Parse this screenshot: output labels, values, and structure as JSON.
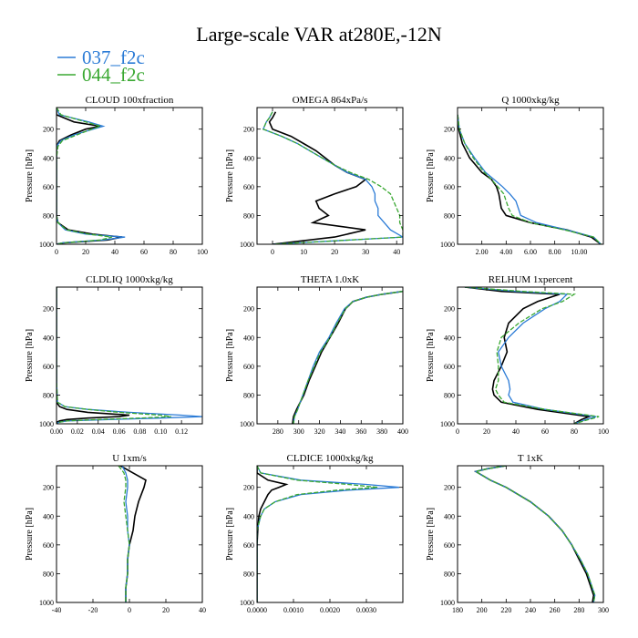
{
  "figure_title": "Large-scale VAR at280E,-12N",
  "legend": [
    {
      "label": "037_f2c",
      "color": "#2b7bd6"
    },
    {
      "label": "044_f2c",
      "color": "#3aa832"
    }
  ],
  "colors": {
    "obs": "#000000",
    "s1": "#2b7bd6",
    "s2": "#3aa832"
  },
  "chart_data": [
    {
      "type": "line",
      "title": "CLOUD 100xfraction",
      "ylabel": "Pressure [hPa]",
      "xlim": [
        0,
        100
      ],
      "ylim": [
        1000,
        50
      ],
      "grid": false,
      "xticks": [
        "0",
        "20",
        "40",
        "60",
        "80",
        "100"
      ],
      "xtick_values": [
        0,
        20,
        40,
        60,
        80,
        100
      ],
      "yticks": [
        "200",
        "400",
        "600",
        "800",
        "1000"
      ],
      "ytick_values": [
        200,
        400,
        600,
        800,
        1000
      ],
      "y": [
        50,
        100,
        150,
        180,
        200,
        240,
        280,
        320,
        400,
        500,
        600,
        700,
        800,
        850,
        900,
        930,
        950,
        970,
        990,
        1000
      ],
      "series": [
        {
          "values": [
            0,
            0,
            12,
            30,
            20,
            10,
            2,
            0,
            0,
            0,
            0,
            0,
            0,
            1,
            8,
            25,
            45,
            35,
            5,
            0
          ],
          "style": "obs"
        },
        {
          "values": [
            0,
            2,
            22,
            32,
            25,
            12,
            3,
            0,
            0,
            0,
            0,
            0,
            0,
            1,
            6,
            20,
            47,
            32,
            4,
            0
          ],
          "style": "s1"
        },
        {
          "values": [
            0,
            3,
            20,
            30,
            24,
            14,
            4,
            1,
            0,
            0,
            0,
            0,
            0,
            1,
            7,
            22,
            38,
            30,
            5,
            0
          ],
          "style": "s2"
        }
      ]
    },
    {
      "type": "line",
      "title": "OMEGA 864xPa/s",
      "ylabel": "Pressure [hPa]",
      "xlim": [
        -5,
        42
      ],
      "ylim": [
        1000,
        50
      ],
      "grid": false,
      "xticks": [
        "0",
        "10",
        "20",
        "30",
        "40"
      ],
      "xtick_values": [
        0,
        10,
        20,
        30,
        40
      ],
      "yticks": [
        "200",
        "400",
        "600",
        "800",
        "1000"
      ],
      "ytick_values": [
        200,
        400,
        600,
        800,
        1000
      ],
      "y": [
        80,
        120,
        150,
        200,
        250,
        300,
        350,
        400,
        450,
        500,
        550,
        600,
        650,
        700,
        750,
        800,
        850,
        900,
        950,
        1000
      ],
      "series": [
        {
          "values": [
            1,
            0,
            -1,
            0,
            6,
            10,
            14,
            17,
            20,
            24,
            30,
            27,
            20,
            14,
            15,
            18,
            13,
            30,
            20,
            0
          ],
          "style": "obs"
        },
        {
          "values": [
            0,
            -1,
            -2,
            -3,
            3,
            8,
            12,
            16,
            20,
            24,
            30,
            32,
            33,
            33,
            34,
            34,
            36,
            38,
            42,
            0
          ],
          "style": "s1"
        },
        {
          "values": [
            0,
            -1,
            -2,
            -3,
            3,
            8,
            12,
            16,
            20,
            25,
            31,
            35,
            38,
            39,
            40,
            41,
            41,
            42,
            42,
            0
          ],
          "style": "s2"
        }
      ]
    },
    {
      "type": "line",
      "title": "Q 1000xkg/kg",
      "ylabel": "Pressure [hPa]",
      "xlim": [
        0,
        12
      ],
      "ylim": [
        1000,
        50
      ],
      "grid": false,
      "xticks": [
        "2.00",
        "4.00",
        "6.00",
        "8.00",
        "10.00"
      ],
      "xtick_values": [
        2,
        4,
        6,
        8,
        10
      ],
      "yticks": [
        "200",
        "400",
        "600",
        "800",
        "1000"
      ],
      "ytick_values": [
        200,
        400,
        600,
        800,
        1000
      ],
      "y": [
        100,
        200,
        300,
        400,
        500,
        550,
        600,
        650,
        700,
        750,
        800,
        850,
        900,
        950,
        1000
      ],
      "series": [
        {
          "values": [
            0.01,
            0.1,
            0.4,
            1.0,
            2.0,
            2.8,
            3.2,
            3.4,
            3.5,
            3.6,
            4.0,
            6.0,
            9.0,
            11.0,
            11.8
          ],
          "style": "obs"
        },
        {
          "values": [
            0.01,
            0.15,
            0.6,
            1.4,
            2.3,
            3.0,
            3.7,
            4.3,
            4.8,
            5.0,
            5.2,
            6.5,
            9.0,
            11.2,
            11.8
          ],
          "style": "s1"
        },
        {
          "values": [
            0.01,
            0.15,
            0.6,
            1.3,
            2.2,
            2.8,
            3.3,
            3.8,
            4.0,
            4.2,
            4.5,
            6.0,
            8.8,
            11.2,
            11.8
          ],
          "style": "s2"
        }
      ]
    },
    {
      "type": "line",
      "title": "CLDLIQ 1000xkg/kg",
      "ylabel": "Pressure [hPa]",
      "xlim": [
        0,
        0.14
      ],
      "ylim": [
        1000,
        50
      ],
      "grid": false,
      "xticks": [
        "0.00",
        "0.02",
        "0.04",
        "0.06",
        "0.08",
        "0.10",
        "0.12"
      ],
      "xtick_values": [
        0,
        0.02,
        0.04,
        0.06,
        0.08,
        0.1,
        0.12
      ],
      "yticks": [
        "200",
        "400",
        "600",
        "800",
        "1000"
      ],
      "ytick_values": [
        200,
        400,
        600,
        800,
        1000
      ],
      "y": [
        50,
        700,
        850,
        880,
        900,
        920,
        940,
        950,
        960,
        970,
        980,
        990,
        1000
      ],
      "series": [
        {
          "values": [
            0,
            0,
            0,
            0.003,
            0.01,
            0.03,
            0.07,
            0.06,
            0.03,
            0.01,
            0.003,
            0,
            0
          ],
          "style": "obs"
        },
        {
          "values": [
            0,
            0,
            0.001,
            0.008,
            0.03,
            0.07,
            0.12,
            0.14,
            0.1,
            0.05,
            0.01,
            0.002,
            0
          ],
          "style": "s1"
        },
        {
          "values": [
            0,
            0,
            0.001,
            0.008,
            0.03,
            0.06,
            0.1,
            0.11,
            0.08,
            0.04,
            0.01,
            0.002,
            0
          ],
          "style": "s2"
        }
      ]
    },
    {
      "type": "line",
      "title": "THETA 1.0xK",
      "ylabel": "Pressure [hPa]",
      "xlim": [
        260,
        400
      ],
      "ylim": [
        1000,
        50
      ],
      "grid": false,
      "xticks": [
        "280",
        "300",
        "320",
        "340",
        "360",
        "380",
        "400"
      ],
      "xtick_values": [
        280,
        300,
        320,
        340,
        360,
        380,
        400
      ],
      "yticks": [
        "200",
        "400",
        "600",
        "800",
        "1000"
      ],
      "ytick_values": [
        200,
        400,
        600,
        800,
        1000
      ],
      "y": [
        80,
        100,
        120,
        150,
        200,
        300,
        400,
        500,
        600,
        700,
        800,
        900,
        950,
        1000
      ],
      "series": [
        {
          "values": [
            400,
            380,
            365,
            352,
            345,
            338,
            330,
            322,
            316,
            310,
            305,
            298,
            295,
            294
          ],
          "style": "obs"
        },
        {
          "values": [
            400,
            380,
            365,
            352,
            344,
            336,
            329,
            320,
            314,
            309,
            304,
            299,
            296,
            295
          ],
          "style": "s1"
        },
        {
          "values": [
            400,
            380,
            365,
            352,
            345,
            337,
            330,
            321,
            315,
            309,
            304,
            299,
            296,
            295
          ],
          "style": "s2"
        }
      ]
    },
    {
      "type": "line",
      "title": "RELHUM 1xpercent",
      "ylabel": "Pressure [hPa]",
      "xlim": [
        0,
        100
      ],
      "ylim": [
        1000,
        50
      ],
      "grid": false,
      "xticks": [
        "0",
        "20",
        "40",
        "60",
        "80",
        "100"
      ],
      "xtick_values": [
        0,
        20,
        40,
        60,
        80,
        100
      ],
      "yticks": [
        "200",
        "400",
        "600",
        "800",
        "1000"
      ],
      "ytick_values": [
        200,
        400,
        600,
        800,
        1000
      ],
      "y": [
        50,
        80,
        100,
        150,
        200,
        300,
        400,
        500,
        600,
        700,
        760,
        800,
        850,
        900,
        950,
        970,
        1000
      ],
      "series": [
        {
          "values": [
            5,
            30,
            70,
            55,
            45,
            35,
            32,
            34,
            30,
            25,
            24,
            25,
            30,
            55,
            90,
            85,
            80
          ],
          "style": "obs"
        },
        {
          "values": [
            5,
            40,
            75,
            70,
            60,
            45,
            35,
            28,
            30,
            35,
            36,
            35,
            38,
            60,
            95,
            88,
            80
          ],
          "style": "s1"
        },
        {
          "values": [
            5,
            45,
            80,
            72,
            58,
            42,
            30,
            27,
            28,
            28,
            26,
            28,
            32,
            60,
            97,
            90,
            80
          ],
          "style": "s2"
        }
      ]
    },
    {
      "type": "line",
      "title": "U 1xm/s",
      "ylabel": "Pressure [hPa]",
      "xlim": [
        -40,
        40
      ],
      "ylim": [
        1000,
        50
      ],
      "grid": false,
      "xticks": [
        "-40",
        "-20",
        "0",
        "20",
        "40"
      ],
      "xtick_values": [
        -40,
        -20,
        0,
        20,
        40
      ],
      "yticks": [
        "200",
        "400",
        "600",
        "800",
        "1000"
      ],
      "ytick_values": [
        200,
        400,
        600,
        800,
        1000
      ],
      "y": [
        50,
        100,
        150,
        200,
        300,
        400,
        500,
        600,
        700,
        800,
        900,
        950,
        1000
      ],
      "series": [
        {
          "values": [
            -5,
            2,
            9,
            8,
            5,
            3,
            2,
            0,
            -1,
            -1,
            -2,
            -2,
            -2
          ],
          "style": "obs"
        },
        {
          "values": [
            -4,
            -2,
            -1,
            -1,
            -2,
            -1,
            -1,
            0,
            -1,
            -1,
            -2,
            -2,
            -2
          ],
          "style": "s1"
        },
        {
          "values": [
            -6,
            -3,
            -2,
            -2,
            -3,
            -2,
            -1,
            0,
            -1,
            -1,
            -2,
            -2,
            -2
          ],
          "style": "s2"
        }
      ]
    },
    {
      "type": "line",
      "title": "CLDICE 1000xkg/kg",
      "ylabel": "Pressure [hPa]",
      "xlim": [
        0,
        0.004
      ],
      "ylim": [
        1000,
        50
      ],
      "grid": false,
      "xticks": [
        "0.0000",
        "0.0010",
        "0.0020",
        "0.0030"
      ],
      "xtick_values": [
        0,
        0.001,
        0.002,
        0.003
      ],
      "yticks": [
        "200",
        "400",
        "600",
        "800",
        "1000"
      ],
      "ytick_values": [
        200,
        400,
        600,
        800,
        1000
      ],
      "y": [
        50,
        100,
        150,
        180,
        200,
        220,
        250,
        300,
        350,
        400,
        500,
        600,
        1000
      ],
      "series": [
        {
          "values": [
            0,
            0,
            0.0003,
            0.0008,
            0.0006,
            0.0004,
            0.0003,
            0.0002,
            0.0001,
            5e-05,
            2e-05,
            0,
            0
          ],
          "style": "obs"
        },
        {
          "values": [
            0,
            0.0001,
            0.0012,
            0.003,
            0.0039,
            0.0025,
            0.0012,
            0.0005,
            0.0002,
            0.0001,
            0,
            0,
            0
          ],
          "style": "s1"
        },
        {
          "values": [
            0,
            0.0001,
            0.0011,
            0.0025,
            0.0033,
            0.0022,
            0.0011,
            0.0005,
            0.0002,
            0.0001,
            0,
            0,
            0
          ],
          "style": "s2"
        }
      ]
    },
    {
      "type": "line",
      "title": "T 1xK",
      "ylabel": "Pressure [hPa]",
      "xlim": [
        180,
        300
      ],
      "ylim": [
        1000,
        50
      ],
      "grid": false,
      "xticks": [
        "180",
        "200",
        "220",
        "240",
        "260",
        "280",
        "300"
      ],
      "xtick_values": [
        180,
        200,
        220,
        240,
        260,
        280,
        300
      ],
      "yticks": [
        "200",
        "400",
        "600",
        "800",
        "1000"
      ],
      "ytick_values": [
        200,
        400,
        600,
        800,
        1000
      ],
      "y": [
        50,
        70,
        90,
        100,
        150,
        200,
        300,
        400,
        500,
        600,
        700,
        800,
        900,
        950,
        1000
      ],
      "series": [
        {
          "values": [
            220,
            205,
            195,
            197,
            207,
            220,
            240,
            255,
            266,
            274,
            280,
            286,
            290,
            292,
            291
          ],
          "style": "obs"
        },
        {
          "values": [
            220,
            205,
            195,
            197,
            207,
            220,
            240,
            255,
            266,
            274,
            281,
            287,
            291,
            293,
            292
          ],
          "style": "s1"
        },
        {
          "values": [
            220,
            205,
            195,
            197,
            207,
            220,
            240,
            255,
            266,
            274,
            281,
            287,
            291,
            293,
            292
          ],
          "style": "s2"
        }
      ]
    }
  ]
}
